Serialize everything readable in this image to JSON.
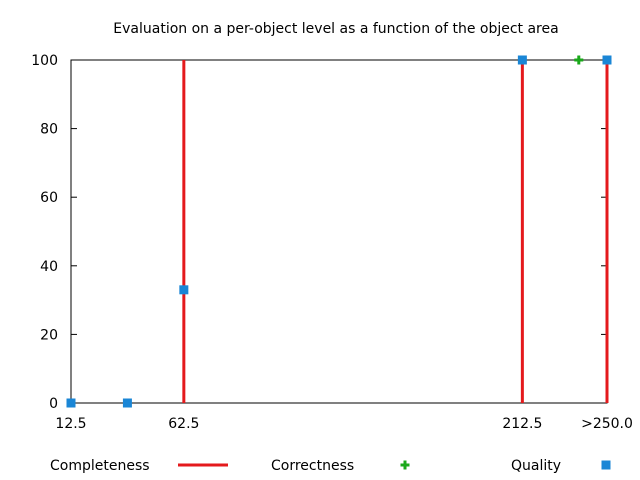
{
  "chart_data": {
    "type": "line",
    "title": "Evaluation on a per-object level as a function of the object area",
    "xlabel": "",
    "ylabel": "",
    "xlim": [
      12.5,
      250.0
    ],
    "ylim": [
      0,
      100
    ],
    "x_ticks": [
      {
        "value": 12.5,
        "label": "12.5"
      },
      {
        "value": 62.5,
        "label": "62.5"
      },
      {
        "value": 212.5,
        "label": "212.5"
      },
      {
        "value": 250.0,
        "label": ">250.0"
      }
    ],
    "y_ticks": [
      0,
      20,
      40,
      60,
      80,
      100
    ],
    "grid": false,
    "legend_placement": "bottom",
    "series": [
      {
        "name": "Completeness",
        "style": "impulses",
        "color": "#e41a1c",
        "points": [
          [
            62.5,
            100
          ],
          [
            212.5,
            100
          ],
          [
            250.0,
            100
          ]
        ]
      },
      {
        "name": "Correctness",
        "style": "points",
        "marker": "plus",
        "color": "#1aa81a",
        "points": [
          [
            237.5,
            100
          ]
        ]
      },
      {
        "name": "Quality",
        "style": "points",
        "marker": "square",
        "color": "#1a86d6",
        "points": [
          [
            12.5,
            0
          ],
          [
            37.5,
            0
          ],
          [
            62.5,
            33
          ],
          [
            212.5,
            100
          ],
          [
            250.0,
            100
          ]
        ]
      }
    ]
  }
}
